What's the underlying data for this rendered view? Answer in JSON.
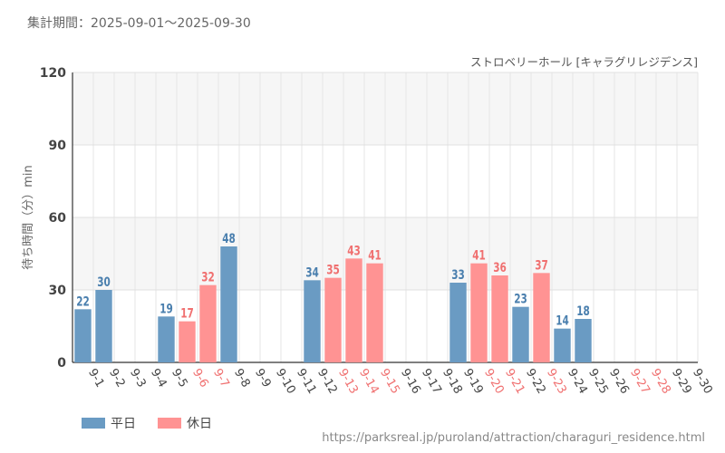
{
  "header": {
    "period": "集計期間：2025-09-01～2025-09-30",
    "subtitle": "ストロベリーホール [キャラグリレジデンス]",
    "source_url": "https://parksreal.jp/puroland/attraction/charaguri_residence.html"
  },
  "legend": [
    {
      "label": "平日",
      "color": "#6a9bc3"
    },
    {
      "label": "休日",
      "color": "#ff9393"
    }
  ],
  "colors": {
    "weekday_bar": "#6a9bc3",
    "holiday_bar": "#ff9393",
    "weekday_label": "#4a7fae",
    "holiday_label": "#f07070",
    "weekday_tick": "#444444",
    "holiday_tick": "#f07070"
  },
  "chart_data": {
    "type": "bar",
    "ylabel": "待ち時間（分）min",
    "ylim": [
      0,
      120
    ],
    "yticks": [
      0,
      30,
      60,
      90,
      120
    ],
    "grid": true,
    "legend_position": "bottom-left",
    "categories": [
      "9-1",
      "9-2",
      "9-3",
      "9-4",
      "9-5",
      "9-6",
      "9-7",
      "9-8",
      "9-9",
      "9-10",
      "9-11",
      "9-12",
      "9-13",
      "9-14",
      "9-15",
      "9-16",
      "9-17",
      "9-18",
      "9-19",
      "9-20",
      "9-21",
      "9-22",
      "9-23",
      "9-24",
      "9-25",
      "9-26",
      "9-27",
      "9-28",
      "9-29",
      "9-30"
    ],
    "values": [
      22,
      30,
      null,
      null,
      19,
      17,
      32,
      48,
      null,
      null,
      null,
      34,
      35,
      43,
      41,
      null,
      null,
      null,
      33,
      41,
      36,
      23,
      37,
      14,
      18,
      null,
      null,
      null,
      null,
      null
    ],
    "day_type": [
      "平日",
      "平日",
      "平日",
      "平日",
      "平日",
      "休日",
      "休日",
      "平日",
      "平日",
      "平日",
      "平日",
      "平日",
      "休日",
      "休日",
      "休日",
      "平日",
      "平日",
      "平日",
      "平日",
      "休日",
      "休日",
      "平日",
      "休日",
      "平日",
      "平日",
      "平日",
      "休日",
      "休日",
      "平日",
      "平日"
    ]
  }
}
